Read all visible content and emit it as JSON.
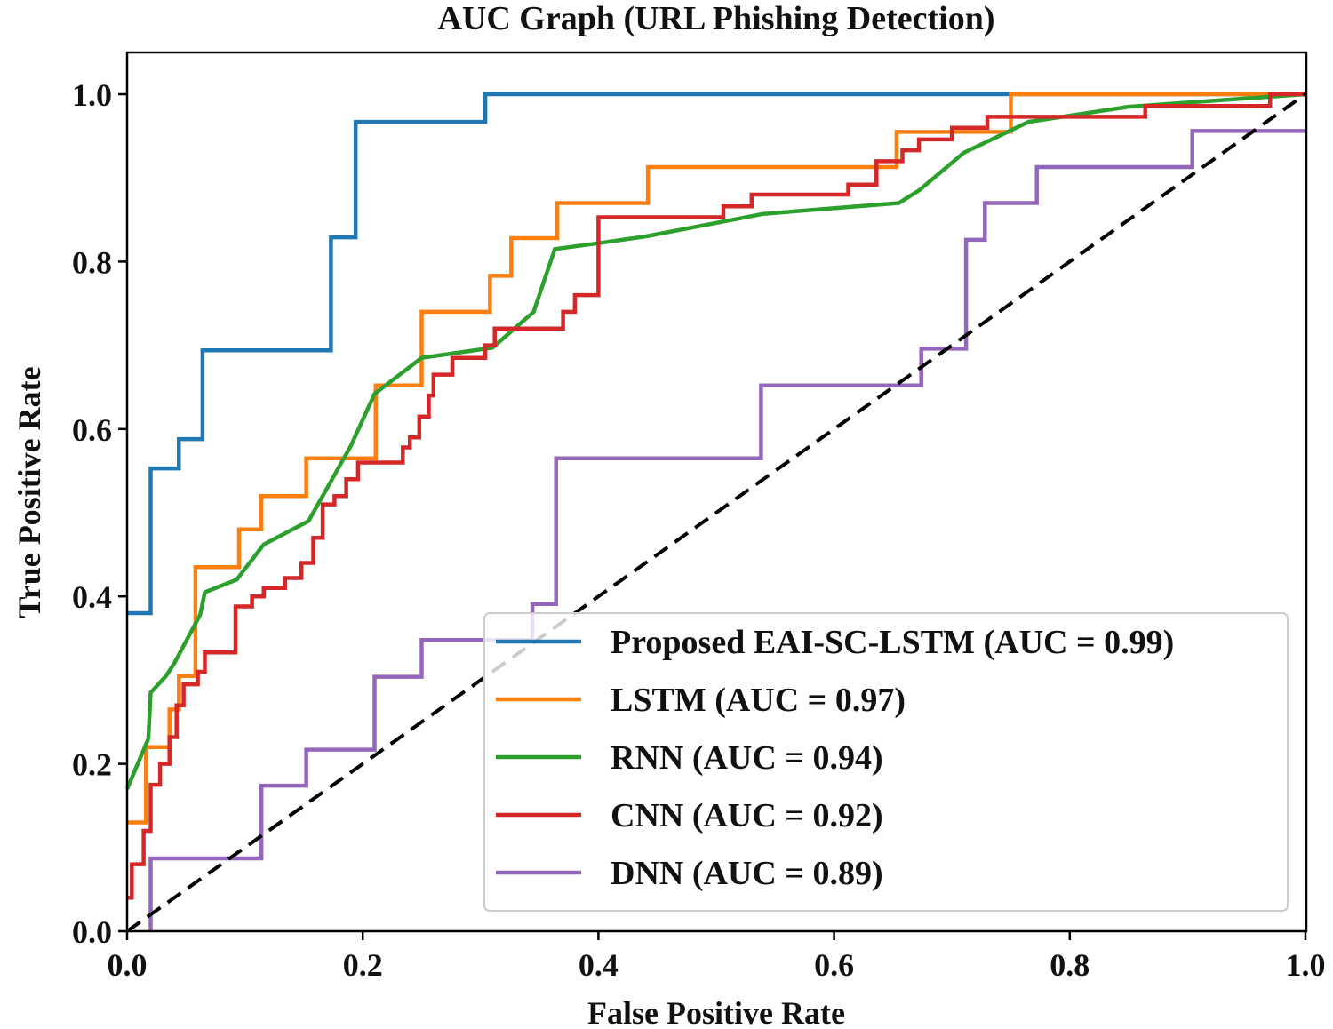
{
  "chart_data": {
    "type": "line",
    "title": "AUC Graph (URL Phishing Detection)",
    "xlabel": "False Positive Rate",
    "ylabel": "True Positive Rate",
    "xlim": [
      0.0,
      1.0
    ],
    "ylim": [
      0.0,
      1.0
    ],
    "xticks": [
      "0.0",
      "0.2",
      "0.4",
      "0.6",
      "0.8",
      "1.0"
    ],
    "yticks": [
      "0.0",
      "0.2",
      "0.4",
      "0.6",
      "0.8",
      "1.0"
    ],
    "grid": false,
    "legend_position": "lower-right",
    "series": [
      {
        "name": "Proposed EAI-SC-LSTM (AUC = 0.99)",
        "color": "#1f77b4",
        "points": [
          [
            0,
            0.38
          ],
          [
            0.02,
            0.38
          ],
          [
            0.02,
            0.553
          ],
          [
            0.044,
            0.553
          ],
          [
            0.044,
            0.588
          ],
          [
            0.064,
            0.588
          ],
          [
            0.064,
            0.694
          ],
          [
            0.173,
            0.694
          ],
          [
            0.173,
            0.829
          ],
          [
            0.194,
            0.829
          ],
          [
            0.194,
            0.967
          ],
          [
            0.304,
            0.967
          ],
          [
            0.304,
            1.0
          ],
          [
            1.0,
            1.0
          ]
        ]
      },
      {
        "name": "LSTM (AUC = 0.97)",
        "color": "#ff7f0e",
        "points": [
          [
            0,
            0.13
          ],
          [
            0.016,
            0.13
          ],
          [
            0.016,
            0.22
          ],
          [
            0.036,
            0.22
          ],
          [
            0.036,
            0.265
          ],
          [
            0.044,
            0.265
          ],
          [
            0.044,
            0.305
          ],
          [
            0.058,
            0.305
          ],
          [
            0.058,
            0.435
          ],
          [
            0.095,
            0.435
          ],
          [
            0.095,
            0.48
          ],
          [
            0.114,
            0.48
          ],
          [
            0.114,
            0.52
          ],
          [
            0.152,
            0.52
          ],
          [
            0.152,
            0.565
          ],
          [
            0.211,
            0.565
          ],
          [
            0.211,
            0.652
          ],
          [
            0.25,
            0.652
          ],
          [
            0.25,
            0.74
          ],
          [
            0.308,
            0.74
          ],
          [
            0.308,
            0.783
          ],
          [
            0.326,
            0.783
          ],
          [
            0.326,
            0.828
          ],
          [
            0.365,
            0.828
          ],
          [
            0.365,
            0.87
          ],
          [
            0.442,
            0.87
          ],
          [
            0.442,
            0.913
          ],
          [
            0.653,
            0.913
          ],
          [
            0.653,
            0.955
          ],
          [
            0.75,
            0.955
          ],
          [
            0.75,
            1.0
          ],
          [
            1.0,
            1.0
          ]
        ]
      },
      {
        "name": "RNN (AUC = 0.94)",
        "color": "#2ca02c",
        "points": [
          [
            0,
            0.17
          ],
          [
            0.018,
            0.23
          ],
          [
            0.02,
            0.285
          ],
          [
            0.033,
            0.305
          ],
          [
            0.04,
            0.32
          ],
          [
            0.062,
            0.378
          ],
          [
            0.066,
            0.405
          ],
          [
            0.093,
            0.42
          ],
          [
            0.116,
            0.462
          ],
          [
            0.154,
            0.49
          ],
          [
            0.19,
            0.58
          ],
          [
            0.21,
            0.642
          ],
          [
            0.25,
            0.685
          ],
          [
            0.31,
            0.697
          ],
          [
            0.345,
            0.74
          ],
          [
            0.363,
            0.815
          ],
          [
            0.4,
            0.822
          ],
          [
            0.44,
            0.83
          ],
          [
            0.54,
            0.857
          ],
          [
            0.655,
            0.87
          ],
          [
            0.672,
            0.885
          ],
          [
            0.71,
            0.93
          ],
          [
            0.765,
            0.967
          ],
          [
            0.85,
            0.985
          ],
          [
            1.0,
            1.0
          ]
        ]
      },
      {
        "name": "CNN (AUC = 0.92)",
        "color": "#d62728",
        "points": [
          [
            0,
            0.04
          ],
          [
            0.004,
            0.04
          ],
          [
            0.004,
            0.08
          ],
          [
            0.014,
            0.08
          ],
          [
            0.014,
            0.12
          ],
          [
            0.02,
            0.12
          ],
          [
            0.02,
            0.175
          ],
          [
            0.028,
            0.175
          ],
          [
            0.028,
            0.2
          ],
          [
            0.036,
            0.2
          ],
          [
            0.036,
            0.232
          ],
          [
            0.042,
            0.232
          ],
          [
            0.042,
            0.27
          ],
          [
            0.048,
            0.27
          ],
          [
            0.048,
            0.295
          ],
          [
            0.06,
            0.295
          ],
          [
            0.06,
            0.31
          ],
          [
            0.066,
            0.31
          ],
          [
            0.066,
            0.333
          ],
          [
            0.092,
            0.333
          ],
          [
            0.092,
            0.388
          ],
          [
            0.106,
            0.388
          ],
          [
            0.106,
            0.4
          ],
          [
            0.116,
            0.4
          ],
          [
            0.116,
            0.41
          ],
          [
            0.134,
            0.41
          ],
          [
            0.134,
            0.422
          ],
          [
            0.148,
            0.422
          ],
          [
            0.148,
            0.44
          ],
          [
            0.158,
            0.44
          ],
          [
            0.158,
            0.47
          ],
          [
            0.166,
            0.47
          ],
          [
            0.166,
            0.51
          ],
          [
            0.176,
            0.51
          ],
          [
            0.176,
            0.52
          ],
          [
            0.186,
            0.52
          ],
          [
            0.186,
            0.54
          ],
          [
            0.196,
            0.54
          ],
          [
            0.196,
            0.56
          ],
          [
            0.234,
            0.56
          ],
          [
            0.234,
            0.578
          ],
          [
            0.24,
            0.578
          ],
          [
            0.24,
            0.59
          ],
          [
            0.248,
            0.59
          ],
          [
            0.248,
            0.615
          ],
          [
            0.256,
            0.615
          ],
          [
            0.256,
            0.64
          ],
          [
            0.26,
            0.64
          ],
          [
            0.26,
            0.665
          ],
          [
            0.276,
            0.665
          ],
          [
            0.276,
            0.685
          ],
          [
            0.304,
            0.685
          ],
          [
            0.304,
            0.7
          ],
          [
            0.312,
            0.7
          ],
          [
            0.312,
            0.72
          ],
          [
            0.37,
            0.72
          ],
          [
            0.37,
            0.74
          ],
          [
            0.38,
            0.74
          ],
          [
            0.38,
            0.76
          ],
          [
            0.4,
            0.76
          ],
          [
            0.4,
            0.853
          ],
          [
            0.506,
            0.853
          ],
          [
            0.506,
            0.866
          ],
          [
            0.53,
            0.866
          ],
          [
            0.53,
            0.88
          ],
          [
            0.612,
            0.88
          ],
          [
            0.612,
            0.892
          ],
          [
            0.636,
            0.892
          ],
          [
            0.636,
            0.92
          ],
          [
            0.658,
            0.92
          ],
          [
            0.658,
            0.933
          ],
          [
            0.672,
            0.933
          ],
          [
            0.672,
            0.946
          ],
          [
            0.7,
            0.946
          ],
          [
            0.7,
            0.96
          ],
          [
            0.73,
            0.96
          ],
          [
            0.73,
            0.973
          ],
          [
            0.864,
            0.973
          ],
          [
            0.864,
            0.986
          ],
          [
            0.97,
            0.986
          ],
          [
            0.97,
            1.0
          ],
          [
            1.0,
            1.0
          ]
        ]
      },
      {
        "name": "DNN (AUC = 0.89)",
        "color": "#9467bd",
        "points": [
          [
            0.02,
            0.0
          ],
          [
            0.02,
            0.087
          ],
          [
            0.114,
            0.087
          ],
          [
            0.114,
            0.174
          ],
          [
            0.152,
            0.174
          ],
          [
            0.152,
            0.217
          ],
          [
            0.21,
            0.217
          ],
          [
            0.21,
            0.304
          ],
          [
            0.25,
            0.304
          ],
          [
            0.25,
            0.348
          ],
          [
            0.344,
            0.348
          ],
          [
            0.344,
            0.391
          ],
          [
            0.364,
            0.391
          ],
          [
            0.364,
            0.565
          ],
          [
            0.538,
            0.565
          ],
          [
            0.538,
            0.652
          ],
          [
            0.674,
            0.652
          ],
          [
            0.674,
            0.696
          ],
          [
            0.712,
            0.696
          ],
          [
            0.712,
            0.826
          ],
          [
            0.728,
            0.826
          ],
          [
            0.728,
            0.87
          ],
          [
            0.772,
            0.87
          ],
          [
            0.772,
            0.913
          ],
          [
            0.904,
            0.913
          ],
          [
            0.904,
            0.956
          ],
          [
            1.0,
            0.956
          ]
        ]
      }
    ],
    "diagonal": {
      "style": "dashed",
      "color": "#000000",
      "from": [
        0,
        0
      ],
      "to": [
        1,
        1
      ]
    }
  }
}
